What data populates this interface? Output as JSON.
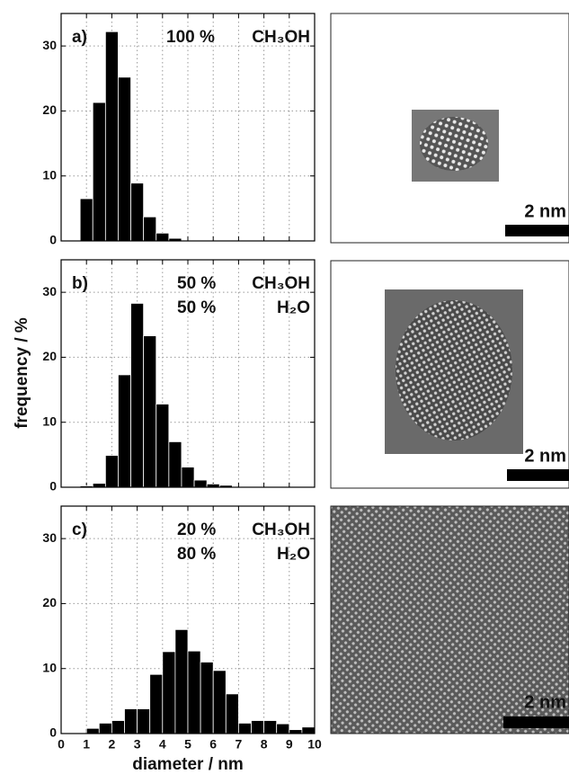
{
  "y_label": "frequency / %",
  "chart_data": [
    {
      "type": "histogram",
      "panel_label": "a)",
      "annotation": [
        [
          "100 %",
          "CH₃OH"
        ]
      ],
      "bins": [
        0.75,
        1.25,
        1.75,
        2.25,
        2.75,
        3.25,
        3.75,
        4.25,
        4.75
      ],
      "counts": [
        6.5,
        21.3,
        32.2,
        25.2,
        8.9,
        3.7,
        1.2,
        0.4
      ],
      "color": "#000000",
      "xlim": [
        0,
        10
      ],
      "ylim": [
        0,
        35
      ],
      "xticks": [
        0,
        1,
        2,
        3,
        4,
        5,
        6,
        7,
        8,
        9,
        10
      ],
      "yticks": [
        0,
        10,
        20,
        30
      ],
      "grid": true,
      "xtick_labels": false,
      "scale_bar": "2 nm"
    },
    {
      "type": "histogram",
      "panel_label": "b)",
      "annotation": [
        [
          "50 %",
          "CH₃OH"
        ],
        [
          "50 %",
          "H₂O"
        ]
      ],
      "bins": [
        0.75,
        1.25,
        1.75,
        2.25,
        2.75,
        3.25,
        3.75,
        4.25,
        4.75,
        5.25,
        5.75,
        6.25,
        6.75
      ],
      "counts": [
        0.2,
        0.6,
        4.9,
        17.3,
        28.3,
        23.3,
        12.8,
        7.0,
        3.1,
        1.1,
        0.5,
        0.3
      ],
      "color": "#000000",
      "xlim": [
        0,
        10
      ],
      "ylim": [
        0,
        35
      ],
      "xticks": [
        0,
        1,
        2,
        3,
        4,
        5,
        6,
        7,
        8,
        9,
        10
      ],
      "yticks": [
        0,
        10,
        20,
        30
      ],
      "grid": true,
      "xtick_labels": false,
      "scale_bar": "2 nm"
    },
    {
      "type": "histogram",
      "panel_label": "c)",
      "annotation": [
        [
          "20 %",
          "CH₃OH"
        ],
        [
          "80 %",
          "H₂O"
        ]
      ],
      "bins": [
        1.0,
        1.5,
        2.0,
        2.5,
        3.0,
        3.5,
        4.0,
        4.5,
        5.0,
        5.5,
        6.0,
        6.5,
        7.0,
        7.5,
        8.0,
        8.5,
        9.0,
        9.5,
        10.0
      ],
      "counts": [
        0.8,
        1.6,
        2.0,
        3.8,
        3.8,
        9.1,
        12.6,
        16.0,
        12.7,
        11.0,
        9.7,
        6.1,
        1.6,
        2.0,
        2.0,
        1.5,
        0.6,
        1.0
      ],
      "color": "#000000",
      "xlim": [
        0,
        10
      ],
      "ylim": [
        0,
        35
      ],
      "xticks": [
        0,
        1,
        2,
        3,
        4,
        5,
        6,
        7,
        8,
        9,
        10
      ],
      "yticks": [
        0,
        10,
        20,
        30
      ],
      "grid": true,
      "xtick_labels": true,
      "x_label": "diameter / nm",
      "scale_bar": "2 nm"
    }
  ]
}
